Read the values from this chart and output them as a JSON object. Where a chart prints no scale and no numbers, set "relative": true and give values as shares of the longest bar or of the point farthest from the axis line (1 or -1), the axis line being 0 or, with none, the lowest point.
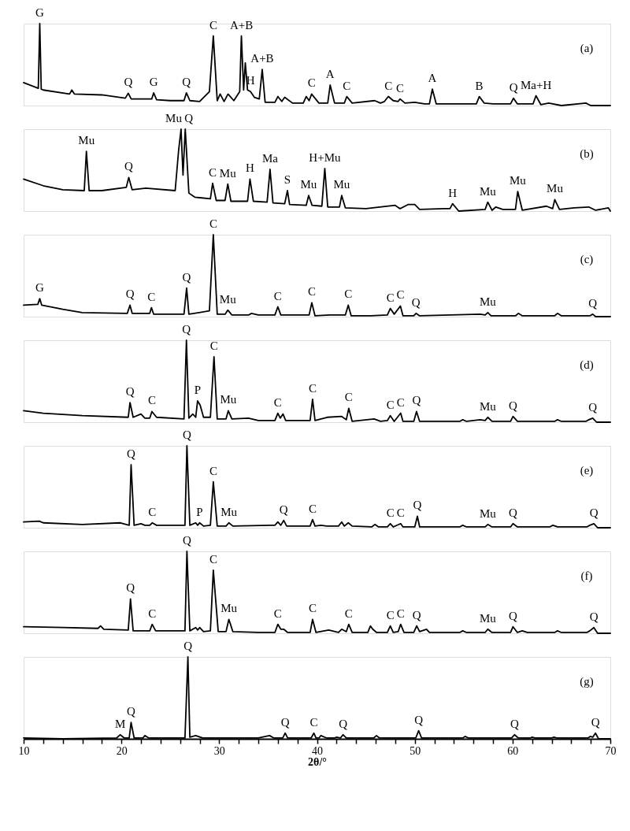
{
  "chart_data": [
    {
      "type": "line",
      "relative": true,
      "tick_labels": false,
      "xlim": [
        10,
        70
      ],
      "annotations": [
        "(a)",
        {
          "text": "G",
          "x": 11.65,
          "y": 1
        },
        {
          "text": "Q",
          "x": 20.7,
          "y": 0.15
        },
        {
          "text": "G",
          "x": 23.3,
          "y": 0.155
        },
        {
          "text": "Q",
          "x": 26.65,
          "y": 0.155
        },
        {
          "text": "C",
          "x": 29.4,
          "y": 0.85
        },
        {
          "text": "A+B",
          "x": 32.27,
          "y": 0.85
        },
        {
          "text": "H",
          "x": 33.2,
          "y": 0.17
        },
        {
          "text": "A+B",
          "x": 34.4,
          "y": 0.44
        },
        {
          "text": "C",
          "x": 39.45,
          "y": 0.14
        },
        {
          "text": "A",
          "x": 41.35,
          "y": 0.25
        },
        {
          "text": "C",
          "x": 43.05,
          "y": 0.11
        },
        {
          "text": "C",
          "x": 47.3,
          "y": 0.11
        },
        {
          "text": "C",
          "x": 48.5,
          "y": 0.08
        },
        {
          "text": "A",
          "x": 51.8,
          "y": 0.2
        },
        {
          "text": "B",
          "x": 56.6,
          "y": 0.11
        },
        {
          "text": "Q",
          "x": 60.1,
          "y": 0.09
        },
        {
          "text": "Ma+H",
          "x": 62.4,
          "y": 0.12
        }
      ],
      "series": [
        {
          "color": "#000000",
          "x": [
            10,
            11.5,
            11.65,
            11.8,
            12,
            14.7,
            14.93,
            15.2,
            18,
            20.4,
            20.7,
            21.0,
            22.9,
            23.1,
            23.3,
            23.6,
            25,
            26.4,
            26.65,
            27,
            28,
            29.0,
            29.4,
            29.8,
            30.1,
            30.5,
            30.9,
            31.5,
            32.1,
            32.27,
            32.5,
            32.67,
            32.9,
            33.2,
            33.6,
            34.1,
            34.4,
            34.7,
            35.7,
            36.0,
            36.4,
            36.7,
            37.5,
            38.6,
            38.9,
            39.2,
            39.45,
            40.2,
            41.1,
            41.35,
            41.8,
            42.8,
            43.05,
            43.6,
            45.9,
            46.5,
            46.9,
            47.3,
            47.8,
            48.3,
            48.5,
            49,
            50,
            51.0,
            51.5,
            51.8,
            52.2,
            54,
            56.3,
            56.6,
            57.1,
            58,
            59.8,
            60.1,
            60.5,
            61.4,
            62.1,
            62.4,
            62.9,
            63.7,
            65,
            67.5,
            68,
            70
          ],
          "values": [
            0.28,
            0.21,
            1.0,
            0.2,
            0.19,
            0.14,
            0.19,
            0.14,
            0.13,
            0.09,
            0.15,
            0.08,
            0.08,
            0.08,
            0.155,
            0.07,
            0.06,
            0.06,
            0.155,
            0.06,
            0.05,
            0.17,
            0.85,
            0.06,
            0.14,
            0.05,
            0.14,
            0.06,
            0.17,
            0.85,
            0.19,
            0.52,
            0.19,
            0.17,
            0.1,
            0.08,
            0.44,
            0.04,
            0.04,
            0.11,
            0.05,
            0.1,
            0.03,
            0.03,
            0.11,
            0.06,
            0.14,
            0.03,
            0.03,
            0.25,
            0.03,
            0.03,
            0.11,
            0.03,
            0.06,
            0.03,
            0.05,
            0.11,
            0.06,
            0.05,
            0.08,
            0.03,
            0.04,
            0.02,
            0.02,
            0.2,
            0.02,
            0.02,
            0.02,
            0.11,
            0.03,
            0.02,
            0.02,
            0.09,
            0.02,
            0.02,
            0.02,
            0.12,
            0.01,
            0.03,
            0.0,
            0.03,
            0.0,
            0.0
          ]
        }
      ]
    },
    {
      "type": "line",
      "relative": true,
      "tick_labels": false,
      "xlim": [
        10,
        70
      ],
      "annotations": [
        "(b)",
        {
          "text": "Mu",
          "x": 26.1,
          "y": 1
        },
        {
          "text": "Q",
          "x": 26.53,
          "y": 1
        },
        {
          "text": "Mu",
          "x": 16.42,
          "y": 0.73
        },
        {
          "text": "Q",
          "x": 20.75,
          "y": 0.41
        },
        {
          "text": "C",
          "x": 29.33,
          "y": 0.34
        },
        {
          "text": "Mu",
          "x": 30.88,
          "y": 0.33
        },
        {
          "text": "H",
          "x": 33.15,
          "y": 0.39
        },
        {
          "text": "Ma",
          "x": 35.2,
          "y": 0.51
        },
        {
          "text": "S",
          "x": 36.98,
          "y": 0.25
        },
        {
          "text": "Mu",
          "x": 39.15,
          "y": 0.19
        },
        {
          "text": "H+Mu",
          "x": 40.8,
          "y": 0.52
        },
        {
          "text": "Mu",
          "x": 42.53,
          "y": 0.19
        },
        {
          "text": "H",
          "x": 53.87,
          "y": 0.09
        },
        {
          "text": "Mu",
          "x": 57.47,
          "y": 0.11
        },
        {
          "text": "Mu",
          "x": 60.53,
          "y": 0.24
        },
        {
          "text": "Mu",
          "x": 64.32,
          "y": 0.14
        }
      ],
      "series": [
        {
          "color": "#000000",
          "x": [
            10,
            12,
            14,
            16.2,
            16.42,
            16.7,
            18,
            20.5,
            20.75,
            21.1,
            22.5,
            25.5,
            25.85,
            26.1,
            26.3,
            26.53,
            26.9,
            27.5,
            29.1,
            29.33,
            29.7,
            30.6,
            30.88,
            31.2,
            32.9,
            33.15,
            33.5,
            34.9,
            35.2,
            35.5,
            36.7,
            36.98,
            37.2,
            38.9,
            39.15,
            39.5,
            40.5,
            40.8,
            41.1,
            42.3,
            42.53,
            42.9,
            45,
            48,
            48.5,
            49.3,
            50,
            50.5,
            53,
            53.6,
            53.87,
            54.5,
            57.2,
            57.47,
            57.9,
            58.3,
            59,
            60.3,
            60.53,
            61.0,
            63.47,
            64.1,
            64.32,
            64.8,
            66.3,
            67.8,
            68.5,
            69.8,
            70
          ],
          "values": [
            0.39,
            0.31,
            0.26,
            0.25,
            0.73,
            0.25,
            0.25,
            0.29,
            0.41,
            0.26,
            0.28,
            0.25,
            0.74,
            1.0,
            0.44,
            1.0,
            0.22,
            0.17,
            0.15,
            0.34,
            0.13,
            0.13,
            0.33,
            0.12,
            0.12,
            0.39,
            0.12,
            0.11,
            0.51,
            0.1,
            0.09,
            0.25,
            0.08,
            0.07,
            0.19,
            0.07,
            0.06,
            0.52,
            0.05,
            0.05,
            0.19,
            0.04,
            0.03,
            0.07,
            0.03,
            0.08,
            0.08,
            0.02,
            0.03,
            0.03,
            0.09,
            0.0,
            0.02,
            0.11,
            0.01,
            0.05,
            0.02,
            0.02,
            0.24,
            0.01,
            0.06,
            0.03,
            0.14,
            0.02,
            0.04,
            0.05,
            0.01,
            0.04,
            0.0
          ]
        }
      ]
    },
    {
      "type": "line",
      "relative": true,
      "tick_labels": false,
      "xlim": [
        10,
        70
      ],
      "annotations": [
        "(c)",
        {
          "text": "G",
          "x": 11.65,
          "y": 0.22
        },
        {
          "text": "Q",
          "x": 20.88,
          "y": 0.14
        },
        {
          "text": "C",
          "x": 23.07,
          "y": 0.11
        },
        {
          "text": "Q",
          "x": 26.67,
          "y": 0.35
        },
        {
          "text": "C",
          "x": 29.4,
          "y": 1
        },
        {
          "text": "Mu",
          "x": 30.88,
          "y": 0.08
        },
        {
          "text": "C",
          "x": 36.0,
          "y": 0.12
        },
        {
          "text": "C",
          "x": 39.47,
          "y": 0.17
        },
        {
          "text": "C",
          "x": 43.2,
          "y": 0.14
        },
        {
          "text": "C",
          "x": 47.5,
          "y": 0.1
        },
        {
          "text": "C",
          "x": 48.53,
          "y": 0.13
        },
        {
          "text": "Q",
          "x": 50.13,
          "y": 0.04
        },
        {
          "text": "Mu",
          "x": 57.47,
          "y": 0.05
        },
        {
          "text": "Q",
          "x": 68.2,
          "y": 0.03
        }
      ],
      "series": [
        {
          "color": "#000000",
          "x": [
            10,
            11.45,
            11.65,
            11.85,
            14,
            16,
            20.6,
            20.88,
            21.1,
            22.9,
            23.07,
            23.3,
            26.4,
            26.67,
            26.9,
            29.0,
            29.4,
            29.8,
            30.6,
            30.88,
            31.3,
            33.0,
            33.3,
            34,
            35.7,
            36.0,
            36.3,
            39.2,
            39.47,
            39.8,
            41.3,
            42.9,
            43.2,
            43.5,
            45.5,
            47.2,
            47.5,
            47.9,
            48.53,
            48.8,
            49.9,
            50.13,
            50.5,
            56.7,
            57.2,
            57.47,
            57.8,
            60.3,
            60.6,
            61,
            64.3,
            64.6,
            65,
            67.9,
            68.2,
            68.5,
            70
          ],
          "values": [
            0.14,
            0.15,
            0.22,
            0.14,
            0.09,
            0.05,
            0.04,
            0.14,
            0.04,
            0.04,
            0.11,
            0.03,
            0.03,
            0.35,
            0.03,
            0.07,
            1.0,
            0.03,
            0.03,
            0.08,
            0.02,
            0.02,
            0.04,
            0.02,
            0.02,
            0.12,
            0.02,
            0.02,
            0.17,
            0.01,
            0.02,
            0.02,
            0.14,
            0.01,
            0.01,
            0.02,
            0.1,
            0.03,
            0.13,
            0.01,
            0.01,
            0.04,
            0.01,
            0.03,
            0.02,
            0.05,
            0.01,
            0.01,
            0.04,
            0.01,
            0.01,
            0.04,
            0.01,
            0.01,
            0.03,
            0.0,
            0.0
          ]
        }
      ]
    },
    {
      "type": "line",
      "relative": true,
      "tick_labels": false,
      "xlim": [
        10,
        70
      ],
      "annotations": [
        "(d)",
        {
          "text": "Q",
          "x": 20.88,
          "y": 0.24
        },
        {
          "text": "C",
          "x": 23.12,
          "y": 0.13
        },
        {
          "text": "Q",
          "x": 26.65,
          "y": 1
        },
        {
          "text": "P",
          "x": 27.79,
          "y": 0.26
        },
        {
          "text": "C",
          "x": 29.47,
          "y": 0.8
        },
        {
          "text": "Mu",
          "x": 30.93,
          "y": 0.14
        },
        {
          "text": "C",
          "x": 36.0,
          "y": 0.11
        },
        {
          "text": "C",
          "x": 39.55,
          "y": 0.28
        },
        {
          "text": "C",
          "x": 43.25,
          "y": 0.17
        },
        {
          "text": "C",
          "x": 47.5,
          "y": 0.08
        },
        {
          "text": "C",
          "x": 48.56,
          "y": 0.11
        },
        {
          "text": "Q",
          "x": 50.18,
          "y": 0.13
        },
        {
          "text": "Mu",
          "x": 57.47,
          "y": 0.06
        },
        {
          "text": "Q",
          "x": 60.05,
          "y": 0.07
        },
        {
          "text": "Q",
          "x": 68.2,
          "y": 0.05
        }
      ],
      "series": [
        {
          "color": "#000000",
          "x": [
            10,
            12,
            16,
            20.7,
            20.88,
            21.2,
            22.0,
            22.4,
            22.9,
            23.12,
            23.6,
            26.4,
            26.65,
            26.9,
            27.3,
            27.6,
            27.79,
            28.05,
            28.4,
            29.1,
            29.47,
            29.8,
            30.7,
            30.93,
            31.3,
            33.0,
            34,
            35.7,
            36.0,
            36.25,
            36.53,
            36.8,
            39.3,
            39.55,
            39.8,
            41.05,
            42.53,
            43.0,
            43.25,
            43.6,
            45.85,
            46.5,
            47.2,
            47.5,
            47.9,
            48.56,
            48.8,
            49.9,
            50.18,
            50.5,
            54.6,
            54.9,
            55.3,
            56.7,
            57.2,
            57.47,
            57.9,
            59.8,
            60.05,
            60.5,
            64.3,
            64.6,
            65,
            67.5,
            67.8,
            68.2,
            68.6,
            70
          ],
          "values": [
            0.14,
            0.11,
            0.08,
            0.06,
            0.24,
            0.06,
            0.1,
            0.05,
            0.05,
            0.13,
            0.06,
            0.04,
            1.0,
            0.05,
            0.1,
            0.06,
            0.26,
            0.21,
            0.06,
            0.06,
            0.8,
            0.04,
            0.04,
            0.14,
            0.04,
            0.05,
            0.02,
            0.02,
            0.11,
            0.05,
            0.1,
            0.02,
            0.02,
            0.28,
            0.02,
            0.06,
            0.07,
            0.03,
            0.17,
            0.01,
            0.04,
            0.01,
            0.02,
            0.08,
            0.01,
            0.11,
            0.01,
            0.01,
            0.13,
            0.01,
            0.01,
            0.03,
            0.01,
            0.03,
            0.02,
            0.06,
            0.01,
            0.01,
            0.07,
            0.01,
            0.01,
            0.03,
            0.01,
            0.01,
            0.03,
            0.05,
            0.0,
            0.0
          ]
        }
      ]
    },
    {
      "type": "line",
      "relative": true,
      "tick_labels": false,
      "xlim": [
        10,
        70
      ],
      "annotations": [
        "(e)",
        {
          "text": "Q",
          "x": 20.99,
          "y": 0.77
        },
        {
          "text": "C",
          "x": 23.15,
          "y": 0.06
        },
        {
          "text": "Q",
          "x": 26.7,
          "y": 1
        },
        {
          "text": "P",
          "x": 28.0,
          "y": 0.06
        },
        {
          "text": "C",
          "x": 29.4,
          "y": 0.56
        },
        {
          "text": "Mu",
          "x": 30.99,
          "y": 0.06
        },
        {
          "text": "Q",
          "x": 36.6,
          "y": 0.09
        },
        {
          "text": "C",
          "x": 39.55,
          "y": 0.1
        },
        {
          "text": "C",
          "x": 47.5,
          "y": 0.05
        },
        {
          "text": "C",
          "x": 48.56,
          "y": 0.05
        },
        {
          "text": "Q",
          "x": 50.27,
          "y": 0.14
        },
        {
          "text": "Mu",
          "x": 57.47,
          "y": 0.04
        },
        {
          "text": "Q",
          "x": 60.05,
          "y": 0.05
        },
        {
          "text": "Q",
          "x": 68.32,
          "y": 0.05
        }
      ],
      "series": [
        {
          "color": "#000000",
          "x": [
            10,
            11.6,
            12,
            16,
            19.9,
            20.8,
            20.99,
            21.3,
            22.0,
            22.4,
            22.9,
            23.15,
            23.6,
            26.5,
            26.7,
            27.0,
            27.6,
            27.8,
            28.0,
            28.4,
            29.1,
            29.4,
            29.8,
            30.7,
            30.99,
            31.4,
            35.2,
            35.7,
            36.0,
            36.3,
            36.6,
            36.9,
            39.3,
            39.55,
            39.8,
            40.4,
            41,
            42.2,
            42.53,
            42.8,
            43.2,
            43.6,
            45.6,
            45.92,
            46.3,
            47.2,
            47.5,
            47.8,
            48.56,
            48.8,
            50.0,
            50.27,
            50.5,
            54.6,
            54.9,
            55.3,
            57.2,
            57.47,
            57.9,
            59.8,
            60.05,
            60.5,
            63.8,
            64.13,
            64.6,
            67.6,
            67.9,
            68.32,
            68.7,
            70
          ],
          "values": [
            0.07,
            0.08,
            0.06,
            0.04,
            0.06,
            0.03,
            0.77,
            0.03,
            0.05,
            0.03,
            0.03,
            0.06,
            0.03,
            0.03,
            1.0,
            0.03,
            0.06,
            0.03,
            0.06,
            0.02,
            0.03,
            0.56,
            0.02,
            0.02,
            0.06,
            0.02,
            0.03,
            0.03,
            0.07,
            0.03,
            0.09,
            0.02,
            0.02,
            0.1,
            0.02,
            0.03,
            0.02,
            0.02,
            0.07,
            0.02,
            0.06,
            0.02,
            0.01,
            0.04,
            0.01,
            0.01,
            0.05,
            0.01,
            0.05,
            0.01,
            0.01,
            0.14,
            0.01,
            0.01,
            0.03,
            0.01,
            0.01,
            0.04,
            0.01,
            0.01,
            0.05,
            0.01,
            0.01,
            0.03,
            0.01,
            0.01,
            0.03,
            0.05,
            0.0,
            0.0
          ]
        }
      ]
    },
    {
      "type": "line",
      "relative": true,
      "tick_labels": false,
      "xlim": [
        10,
        70
      ],
      "annotations": [
        "(f)",
        {
          "text": "Q",
          "x": 20.93,
          "y": 0.42
        },
        {
          "text": "C",
          "x": 23.15,
          "y": 0.11
        },
        {
          "text": "Q",
          "x": 26.7,
          "y": 1
        },
        {
          "text": "C",
          "x": 29.4,
          "y": 0.77
        },
        {
          "text": "Mu",
          "x": 30.99,
          "y": 0.17
        },
        {
          "text": "C",
          "x": 36.0,
          "y": 0.11
        },
        {
          "text": "C",
          "x": 39.55,
          "y": 0.17
        },
        {
          "text": "C",
          "x": 43.25,
          "y": 0.11
        },
        {
          "text": "C",
          "x": 47.5,
          "y": 0.09
        },
        {
          "text": "C",
          "x": 48.56,
          "y": 0.11
        },
        {
          "text": "Q",
          "x": 50.2,
          "y": 0.09
        },
        {
          "text": "Mu",
          "x": 57.47,
          "y": 0.05
        },
        {
          "text": "Q",
          "x": 60.05,
          "y": 0.08
        },
        {
          "text": "Q",
          "x": 68.32,
          "y": 0.07
        }
      ],
      "series": [
        {
          "color": "#000000",
          "x": [
            10,
            14,
            17.6,
            17.87,
            18.2,
            20.7,
            20.93,
            21.2,
            22.9,
            23.15,
            23.5,
            26.5,
            26.7,
            27.0,
            27.6,
            27.8,
            28.0,
            28.4,
            29.1,
            29.4,
            29.9,
            30.7,
            30.99,
            31.4,
            34,
            35.7,
            36.0,
            36.3,
            36.6,
            37.0,
            39.3,
            39.55,
            39.9,
            41.2,
            42.2,
            42.53,
            43.0,
            43.25,
            43.6,
            45.2,
            45.47,
            45.7,
            46.1,
            47.2,
            47.5,
            47.8,
            48.3,
            48.56,
            48.9,
            49.9,
            50.2,
            50.5,
            51.2,
            51.5,
            54.6,
            54.9,
            55.3,
            57.2,
            57.47,
            57.9,
            59.8,
            60.05,
            60.5,
            61.0,
            61.5,
            64.3,
            64.6,
            65,
            67.6,
            67.9,
            68.32,
            68.7,
            70
          ],
          "values": [
            0.08,
            0.07,
            0.06,
            0.09,
            0.05,
            0.04,
            0.42,
            0.03,
            0.03,
            0.11,
            0.03,
            0.03,
            1.0,
            0.03,
            0.07,
            0.04,
            0.07,
            0.02,
            0.03,
            0.77,
            0.02,
            0.02,
            0.17,
            0.02,
            0.01,
            0.01,
            0.11,
            0.05,
            0.05,
            0.01,
            0.01,
            0.17,
            0.01,
            0.04,
            0.01,
            0.05,
            0.02,
            0.11,
            0.01,
            0.01,
            0.09,
            0.05,
            0.01,
            0.01,
            0.09,
            0.01,
            0.02,
            0.11,
            0.01,
            0.01,
            0.09,
            0.02,
            0.05,
            0.01,
            0.01,
            0.03,
            0.01,
            0.01,
            0.05,
            0.01,
            0.01,
            0.08,
            0.01,
            0.03,
            0.01,
            0.01,
            0.03,
            0.01,
            0.01,
            0.03,
            0.07,
            0.0,
            0.0
          ]
        }
      ]
    },
    {
      "type": "line",
      "relative": true,
      "tick_labels": "x",
      "xlabel": "2θ/°",
      "xlim": [
        10,
        70
      ],
      "xticks": [
        10,
        {
          "value": 12,
          "label": null
        },
        {
          "value": 14,
          "label": null
        },
        {
          "value": 16,
          "label": null
        },
        {
          "value": 18,
          "label": null
        },
        20,
        {
          "value": 22,
          "label": null
        },
        {
          "value": 24,
          "label": null
        },
        {
          "value": 26,
          "label": null
        },
        {
          "value": 28,
          "label": null
        },
        30,
        {
          "value": 32,
          "label": null
        },
        {
          "value": 34,
          "label": null
        },
        {
          "value": 36,
          "label": null
        },
        {
          "value": 38,
          "label": null
        },
        40,
        {
          "value": 42,
          "label": null
        },
        {
          "value": 44,
          "label": null
        },
        {
          "value": 46,
          "label": null
        },
        {
          "value": 48,
          "label": null
        },
        50,
        {
          "value": 52,
          "label": null
        },
        {
          "value": 54,
          "label": null
        },
        {
          "value": 56,
          "label": null
        },
        {
          "value": 58,
          "label": null
        },
        60,
        {
          "value": 62,
          "label": null
        },
        {
          "value": 64,
          "label": null
        },
        {
          "value": 66,
          "label": null
        },
        {
          "value": 68,
          "label": null
        },
        70
      ],
      "annotations": [
        "(g)",
        {
          "text": "M",
          "x": 19.87,
          "y": 0.05
        },
        {
          "text": "Q",
          "x": 20.99,
          "y": 0.2
        },
        {
          "text": "Q",
          "x": 26.8,
          "y": 1
        },
        {
          "text": "Q",
          "x": 36.75,
          "y": 0.07
        },
        {
          "text": "C",
          "x": 39.68,
          "y": 0.07
        },
        {
          "text": "Q",
          "x": 42.67,
          "y": 0.05
        },
        {
          "text": "Q",
          "x": 50.4,
          "y": 0.1
        },
        {
          "text": "Q",
          "x": 60.2,
          "y": 0.05
        },
        {
          "text": "Q",
          "x": 68.48,
          "y": 0.07
        }
      ],
      "series": [
        {
          "color": "#000000",
          "x": [
            10,
            14,
            19.5,
            19.87,
            20.3,
            20.8,
            20.99,
            21.3,
            22.2,
            22.4,
            22.8,
            26.5,
            26.8,
            27.0,
            27.6,
            28.3,
            34,
            35.15,
            35.6,
            36.5,
            36.75,
            37,
            39.4,
            39.68,
            39.9,
            40.2,
            40.4,
            41,
            41.8,
            42.0,
            42.4,
            42.67,
            43,
            45.8,
            46.08,
            46.4,
            50.1,
            50.4,
            50.7,
            54.9,
            55.15,
            55.5,
            59.9,
            60.2,
            60.6,
            61.8,
            62.0,
            62.3,
            64.0,
            64.24,
            64.5,
            67.7,
            67.95,
            68.2,
            68.48,
            68.8,
            70
          ],
          "values": [
            0.01,
            0.0,
            0.01,
            0.05,
            0.01,
            0.01,
            0.2,
            0.01,
            0.01,
            0.04,
            0.01,
            0.01,
            1.0,
            0.02,
            0.04,
            0.01,
            0.01,
            0.04,
            0.01,
            0.01,
            0.07,
            0.01,
            0.01,
            0.07,
            0.01,
            0.01,
            0.04,
            0.01,
            0.01,
            0.02,
            0.01,
            0.05,
            0.01,
            0.01,
            0.04,
            0.01,
            0.01,
            0.1,
            0.01,
            0.01,
            0.03,
            0.01,
            0.01,
            0.05,
            0.01,
            0.01,
            0.02,
            0.01,
            0.01,
            0.02,
            0.01,
            0.01,
            0.03,
            0.02,
            0.07,
            0.0,
            0.0
          ]
        }
      ]
    }
  ]
}
